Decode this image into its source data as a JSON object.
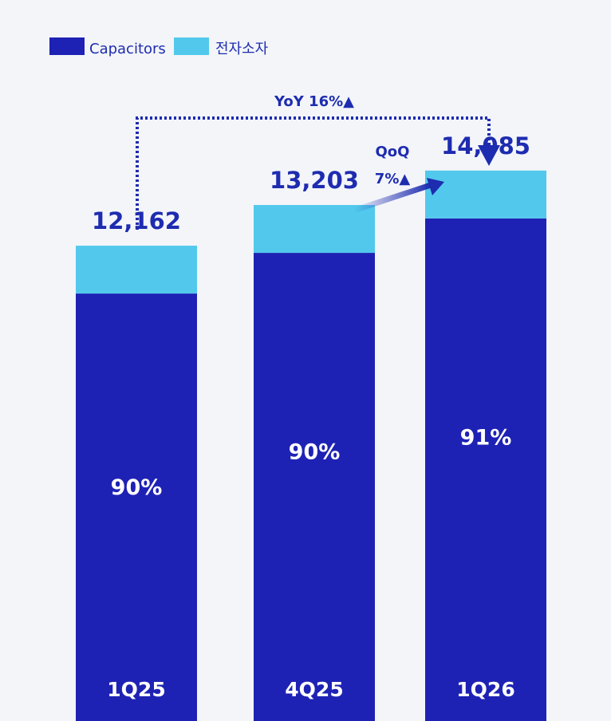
{
  "chart_data": {
    "type": "bar",
    "stacked": true,
    "categories": [
      "1Q25",
      "4Q25",
      "1Q26"
    ],
    "totals": [
      12162,
      13203,
      14085
    ],
    "total_labels": [
      "12,162",
      "13,203",
      "14,085"
    ],
    "series": [
      {
        "name": "Capacitors",
        "share_pct": [
          90,
          90,
          91
        ],
        "color": "#1e22b4"
      },
      {
        "name": "전자소자",
        "share_pct": [
          10,
          10,
          9
        ],
        "color": "#52c9ec"
      }
    ],
    "bar_labels": [
      "90%",
      "90%",
      "91%"
    ],
    "legend": {
      "position": "top-left"
    },
    "annotations": {
      "yoy": "YoY 16%▲",
      "qoq_line1": "QoQ",
      "qoq_line2": "7%▲"
    },
    "ylim": [
      0,
      15000
    ],
    "grid": false
  },
  "colors": {
    "background": "#f3f5f9",
    "text": "#1e2cb0",
    "capacitors": "#1e22b4",
    "electronic": "#52c9ec"
  }
}
